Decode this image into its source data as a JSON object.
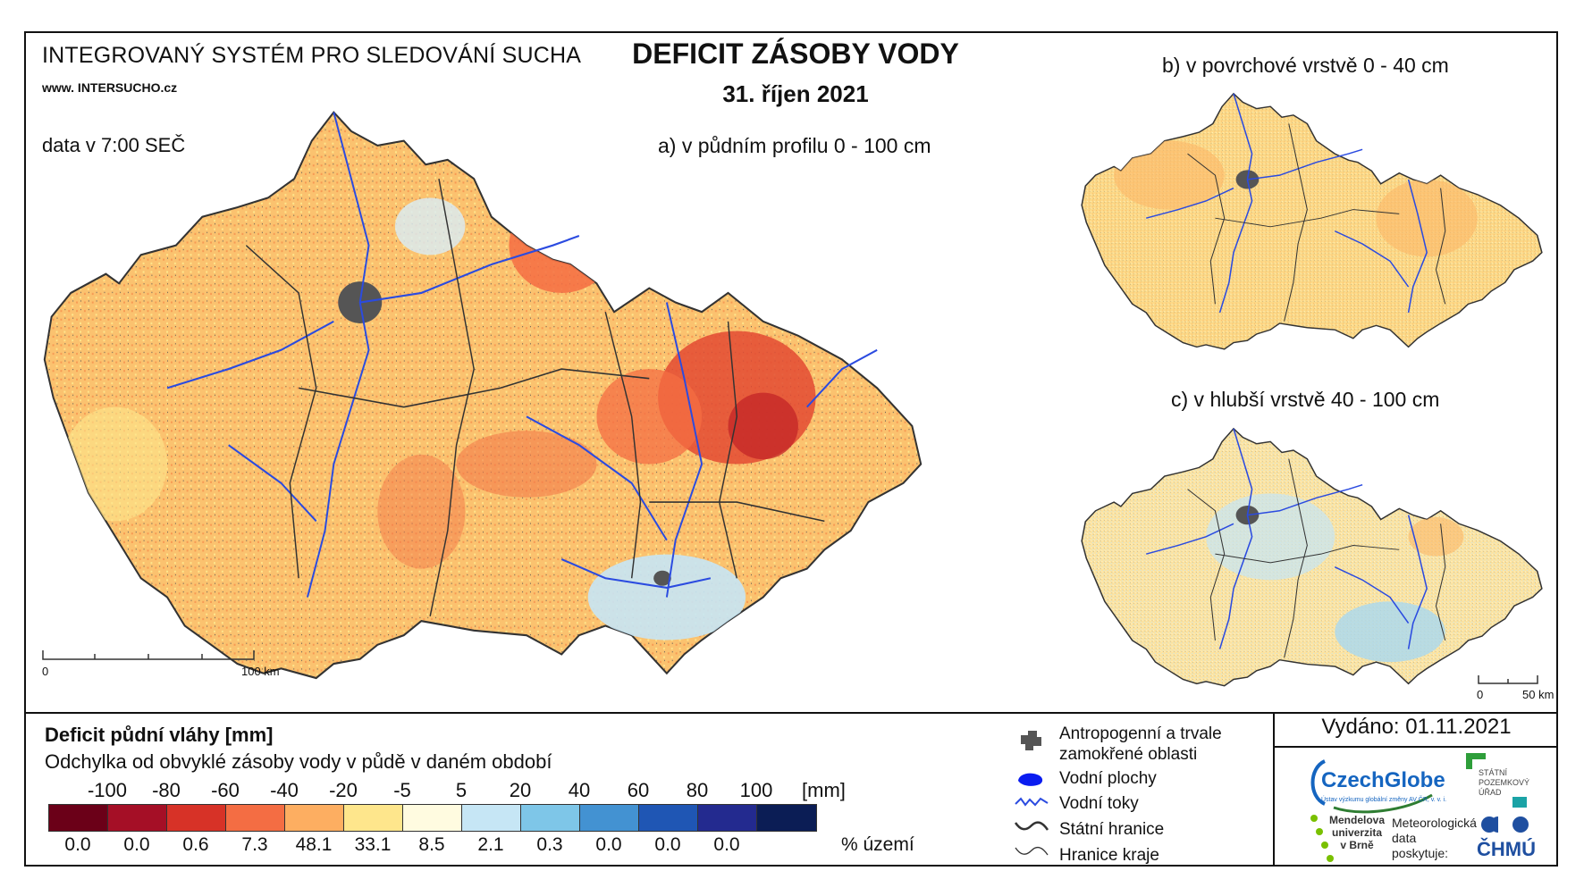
{
  "header": {
    "system_title": "INTEGROVANÝ SYSTÉM PRO SLEDOVÁNÍ SUCHA",
    "website": "www. INTERSUCHO.cz",
    "data_time": "data v 7:00 SEČ",
    "main_title": "DEFICIT ZÁSOBY VODY",
    "date": "31. říjen 2021"
  },
  "maps": {
    "a_label": "a) v půdním profilu 0 - 100 cm",
    "b_label": "b) v povrchové vrstvě 0 - 40 cm",
    "c_label": "c) v hlubší vrstvě 40 - 100 cm",
    "scale_main_start": "0",
    "scale_main_end": "100 km",
    "scale_small_start": "0",
    "scale_small_end": "50 km"
  },
  "legend": {
    "title": "Deficit půdní vláhy  [mm]",
    "subtitle": "Odchylka od obvyklé zásoby vody v půdě v daném období",
    "ticks": [
      "-100",
      "-80",
      "-60",
      "-40",
      "-20",
      "-5",
      "5",
      "20",
      "40",
      "60",
      "80",
      "100"
    ],
    "unit": "[mm]",
    "colors": [
      "#6b0018",
      "#a50f26",
      "#d73227",
      "#f46d43",
      "#fdae61",
      "#fee68c",
      "#fffbe0",
      "#c6e6f5",
      "#7ec6e8",
      "#4392d2",
      "#1f56b4",
      "#232a8f",
      "#0b1d55"
    ],
    "percentages": [
      "0.0",
      "0.0",
      "0.6",
      "7.3",
      "48.1",
      "33.1",
      "8.5",
      "2.1",
      "0.3",
      "0.0",
      "0.0",
      "0.0"
    ],
    "percent_unit": "% území"
  },
  "symbols": {
    "anthropogenic": "Antropogenní a trvale zamokřené oblasti",
    "water_bodies": "Vodní plochy",
    "rivers": "Vodní toky",
    "state_border": "Státní hranice",
    "region_border": "Hranice kraje"
  },
  "footer": {
    "issued": "Vydáno: 01.11.2021",
    "czechglobe": "CzechGlobe",
    "czechglobe_sub": "Ústav výzkumu globální změny AV ČR, v. v. i.",
    "spu_line1": "STÁTNÍ",
    "spu_line2": "POZEMKOVÝ",
    "spu_line3": "ÚŘAD",
    "mendel_line1": "Mendelova",
    "mendel_line2": "univerzita",
    "mendel_line3": "v Brně",
    "meteo_line1": "Meteorologická",
    "meteo_line2": "data",
    "meteo_line3": "poskytuje:",
    "chmu": "ČHMÚ"
  }
}
